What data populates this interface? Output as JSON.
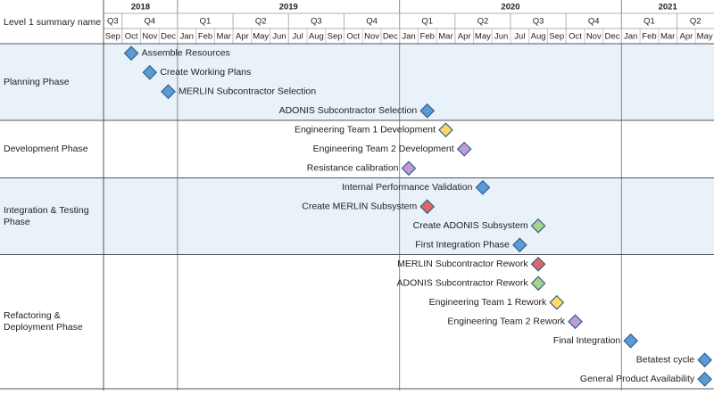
{
  "chart_data": {
    "type": "gantt",
    "header_label": "Level 1 summary name",
    "years": [
      "2018",
      "2019",
      "2020",
      "2021"
    ],
    "quarters": [
      "Q3",
      "Q4",
      "Q1",
      "Q2",
      "Q3",
      "Q4",
      "Q1",
      "Q2",
      "Q3",
      "Q4",
      "Q1",
      "Q2"
    ],
    "months": [
      "Sep",
      "Oct",
      "Nov",
      "Dec",
      "Jan",
      "Feb",
      "Mar",
      "Apr",
      "May",
      "Jun",
      "Jul",
      "Aug",
      "Sep",
      "Oct",
      "Nov",
      "Dec",
      "Jan",
      "Feb",
      "Mar",
      "Apr",
      "May",
      "Jun",
      "Jul",
      "Aug",
      "Sep",
      "Oct",
      "Nov",
      "Dec",
      "Jan",
      "Feb",
      "Mar",
      "Apr",
      "May"
    ],
    "groups": [
      {
        "name": "Planning Phase",
        "milestones": [
          {
            "label": "Assemble Resources",
            "year": "2018",
            "month": "Oct",
            "color": "#5b9bd5"
          },
          {
            "label": "Create Working Plans",
            "year": "2018",
            "month": "Nov",
            "color": "#5b9bd5"
          },
          {
            "label": "MERLIN Subcontractor Selection",
            "year": "2018",
            "month": "Dec",
            "color": "#5b9bd5"
          },
          {
            "label": "ADONIS Subcontractor Selection",
            "year": "2020",
            "month": "Feb",
            "color": "#5b9bd5"
          }
        ]
      },
      {
        "name": "Development Phase",
        "milestones": [
          {
            "label": "Engineering Team 1 Development",
            "year": "2020",
            "month": "Mar",
            "color": "#ffd966"
          },
          {
            "label": "Engineering Team 2 Development",
            "year": "2020",
            "month": "Apr",
            "color": "#c39bd3"
          },
          {
            "label": "Resistance calibration",
            "year": "2020",
            "month": "Jan",
            "color": "#c39bd3"
          }
        ]
      },
      {
        "name": "Integration & Testing Phase",
        "milestones": [
          {
            "label": "Internal Performance Validation",
            "year": "2020",
            "month": "May",
            "color": "#5b9bd5"
          },
          {
            "label": "Create MERLIN Subsystem",
            "year": "2020",
            "month": "Feb",
            "color": "#e06666"
          },
          {
            "label": "Create ADONIS Subsystem",
            "year": "2020",
            "month": "Aug",
            "color": "#a9d18e"
          },
          {
            "label": "First Integration Phase",
            "year": "2020",
            "month": "Jul",
            "color": "#5b9bd5"
          }
        ]
      },
      {
        "name": "Refactoring & Deployment Phase",
        "milestones": [
          {
            "label": "MERLIN Subcontractor Rework",
            "year": "2020",
            "month": "Aug",
            "color": "#e06666"
          },
          {
            "label": "ADONIS Subcontractor Rework",
            "year": "2020",
            "month": "Aug",
            "color": "#a9d18e"
          },
          {
            "label": "Engineering Team 1 Rework",
            "year": "2020",
            "month": "Sep",
            "color": "#ffd966"
          },
          {
            "label": "Engineering Team 2 Rework",
            "year": "2020",
            "month": "Oct",
            "color": "#c39bd3"
          },
          {
            "label": "Final Integration",
            "year": "2021",
            "month": "Jan",
            "color": "#5b9bd5"
          },
          {
            "label": "Betatest cycle",
            "year": "2021",
            "month": "May",
            "color": "#5b9bd5"
          },
          {
            "label": "General Product Availability",
            "year": "2021",
            "month": "May",
            "color": "#5b9bd5"
          }
        ]
      }
    ]
  }
}
